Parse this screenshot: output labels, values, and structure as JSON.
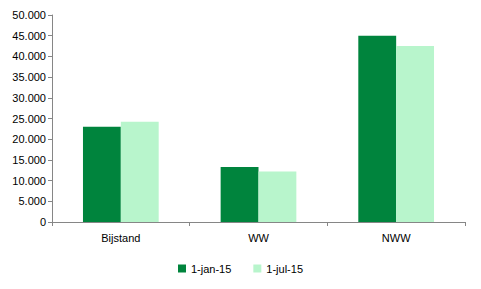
{
  "chart_data": {
    "type": "bar",
    "categories": [
      "Bijstand",
      "WW",
      "NWW"
    ],
    "series": [
      {
        "name": "1-jan-15",
        "color": "#00843d",
        "values": [
          23000,
          13300,
          45000
        ]
      },
      {
        "name": "1-jul-15",
        "color": "#b8f5cc",
        "values": [
          24200,
          12200,
          42500
        ]
      }
    ],
    "ylim": [
      0,
      50000
    ],
    "yticks": [
      0,
      {
        "value": 5000,
        "label": "5.000"
      },
      {
        "value": 10000,
        "label": "10.000"
      },
      {
        "value": 15000,
        "label": "15.000"
      },
      {
        "value": 20000,
        "label": "20.000"
      },
      {
        "value": 25000,
        "label": "25.000"
      },
      {
        "value": 30000,
        "label": "30.000"
      },
      {
        "value": 35000,
        "label": "35.000"
      },
      {
        "value": 40000,
        "label": "40.000"
      },
      {
        "value": 45000,
        "label": "45.000"
      },
      {
        "value": 50000,
        "label": "50.000"
      }
    ],
    "grid": false,
    "legend": "bottom"
  }
}
